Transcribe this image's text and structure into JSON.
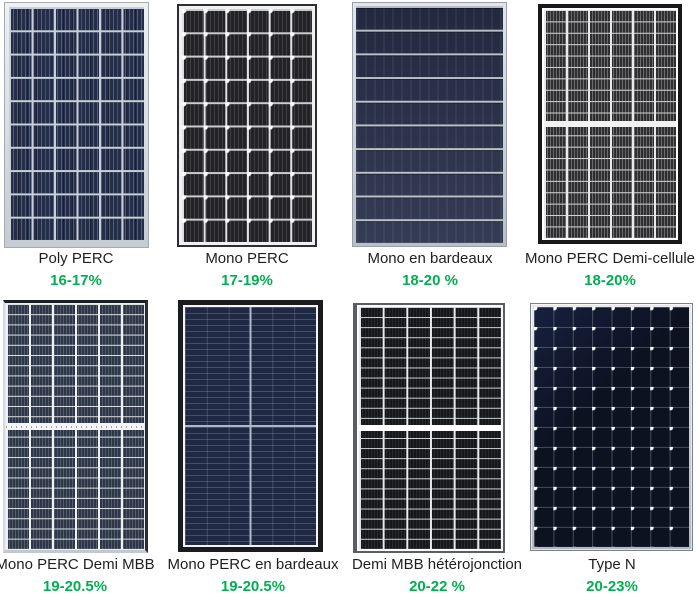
{
  "colors": {
    "efficiency_text": "#00B050",
    "label_text": "#1F1F1F",
    "background": "#FFFFFF"
  },
  "panels": [
    {
      "label": "Poly PERC",
      "efficiency": "16-17%",
      "image_alt": "blue polycrystalline panel, silver frame, 6x10 cell grid"
    },
    {
      "label": "Mono PERC",
      "efficiency": "17-19%",
      "image_alt": "black monocrystalline panel, white grid gaps and corner dots, 6x10 cells"
    },
    {
      "label": "Mono en bardeaux",
      "efficiency": "18-20 %",
      "image_alt": "dark navy shingled panel, 10 horizontal bands, thin silver frame"
    },
    {
      "label": "Mono PERC Demi-cellule",
      "efficiency": "18-20%",
      "image_alt": "half-cut cell panel, black frame, 6x20 half-cells, white center band"
    },
    {
      "label": "Mono PERC  Demi MBB",
      "efficiency": "19-20.5%",
      "image_alt": "blue-grey half-cut multi-busbar panel, 6x24 half-cells, white center band"
    },
    {
      "label": "Mono PERC en bardeaux",
      "efficiency": "19-20.5%",
      "image_alt": "dark blue shingled panel, black frame, light cross lines at center"
    },
    {
      "label": "Demi MBB hétérojonction",
      "efficiency": "20-22 %",
      "image_alt": "black heterojunction half-cut panel, 6x24 half-cells, white center band"
    },
    {
      "label": "Type N",
      "efficiency": "20-23%",
      "image_alt": "very dark N-type panel, 8x12 cells with white contact dots, silver frame"
    }
  ]
}
